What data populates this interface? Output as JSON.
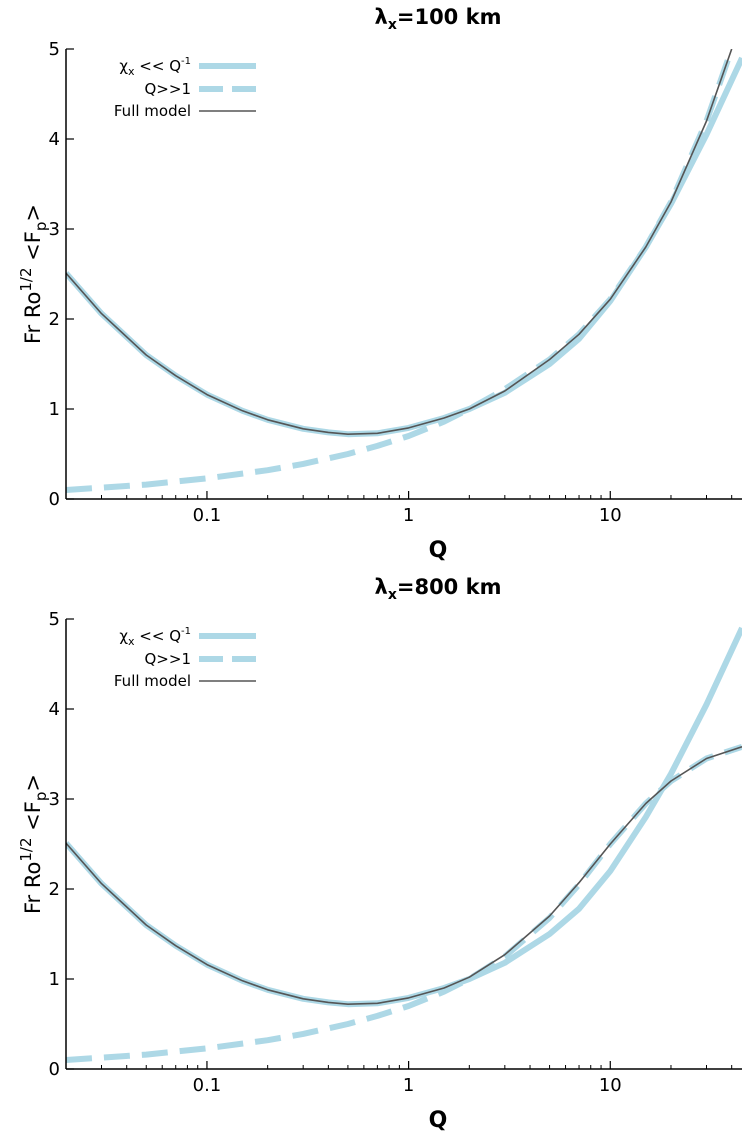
{
  "figure": {
    "colors": {
      "approx": "#add8e6",
      "full": "#555555",
      "axis": "#000000"
    }
  },
  "chart_data": [
    {
      "type": "line",
      "title_main": "λ",
      "title_sub": "x",
      "title_rest": "=100 km",
      "xlabel": "Q",
      "ylabel_a": "Fr Ro",
      "ylabel_sup": "1/2",
      "ylabel_b": " <F",
      "ylabel_sub": "p",
      "ylabel_c": ">",
      "xscale": "log",
      "xlim": [
        0.02,
        45
      ],
      "ylim": [
        0,
        5
      ],
      "xticks": [
        0.1,
        1,
        10
      ],
      "xtick_labels": [
        "0.1",
        "1",
        "10"
      ],
      "yticks": [
        0,
        1,
        2,
        3,
        4,
        5
      ],
      "ytick_labels": [
        "0",
        "1",
        "2",
        "3",
        "4",
        "5"
      ],
      "grid": false,
      "legend_position": "top-left",
      "series": [
        {
          "legend_main": "χ",
          "legend_sub": "x",
          "legend_mid": " << Q",
          "legend_sup": "-1",
          "style": "solid",
          "x": [
            0.02,
            0.03,
            0.05,
            0.07,
            0.1,
            0.15,
            0.2,
            0.3,
            0.4,
            0.5,
            0.7,
            1,
            1.5,
            2,
            3,
            5,
            7,
            10,
            15,
            20,
            30,
            45
          ],
          "y": [
            2.51,
            2.06,
            1.6,
            1.37,
            1.16,
            0.98,
            0.88,
            0.78,
            0.74,
            0.72,
            0.73,
            0.79,
            0.9,
            1.0,
            1.18,
            1.5,
            1.78,
            2.2,
            2.8,
            3.28,
            4.05,
            4.9
          ]
        },
        {
          "legend_main": "Q>>1",
          "style": "dashed",
          "x": [
            0.02,
            0.05,
            0.1,
            0.2,
            0.3,
            0.5,
            0.7,
            1,
            1.5,
            2,
            3,
            5,
            7,
            10,
            15,
            20,
            30,
            40
          ],
          "y": [
            0.1,
            0.16,
            0.23,
            0.32,
            0.39,
            0.5,
            0.59,
            0.7,
            0.86,
            1.0,
            1.22,
            1.55,
            1.83,
            2.22,
            2.8,
            3.3,
            4.2,
            5.0
          ]
        },
        {
          "legend_main": "Full model",
          "style": "thin",
          "x": [
            0.02,
            0.03,
            0.05,
            0.07,
            0.1,
            0.15,
            0.2,
            0.3,
            0.4,
            0.5,
            0.7,
            1,
            1.5,
            2,
            3,
            5,
            7,
            10,
            15,
            20,
            30,
            40
          ],
          "y": [
            2.51,
            2.06,
            1.6,
            1.37,
            1.16,
            0.98,
            0.88,
            0.78,
            0.74,
            0.72,
            0.73,
            0.79,
            0.9,
            1.0,
            1.2,
            1.55,
            1.83,
            2.22,
            2.8,
            3.3,
            4.2,
            5.0
          ]
        }
      ]
    },
    {
      "type": "line",
      "title_main": "λ",
      "title_sub": "x",
      "title_rest": "=800 km",
      "xlabel": "Q",
      "ylabel_a": "Fr Ro",
      "ylabel_sup": "1/2",
      "ylabel_b": " <F",
      "ylabel_sub": "p",
      "ylabel_c": ">",
      "xscale": "log",
      "xlim": [
        0.02,
        45
      ],
      "ylim": [
        0,
        5
      ],
      "xticks": [
        0.1,
        1,
        10
      ],
      "xtick_labels": [
        "0.1",
        "1",
        "10"
      ],
      "yticks": [
        0,
        1,
        2,
        3,
        4,
        5
      ],
      "ytick_labels": [
        "0",
        "1",
        "2",
        "3",
        "4",
        "5"
      ],
      "grid": false,
      "legend_position": "top-left",
      "series": [
        {
          "legend_main": "χ",
          "legend_sub": "x",
          "legend_mid": " << Q",
          "legend_sup": "-1",
          "style": "solid",
          "x": [
            0.02,
            0.03,
            0.05,
            0.07,
            0.1,
            0.15,
            0.2,
            0.3,
            0.4,
            0.5,
            0.7,
            1,
            1.5,
            2,
            3,
            5,
            7,
            10,
            15,
            20,
            30,
            45
          ],
          "y": [
            2.51,
            2.06,
            1.6,
            1.37,
            1.16,
            0.98,
            0.88,
            0.78,
            0.74,
            0.72,
            0.73,
            0.79,
            0.9,
            1.0,
            1.18,
            1.5,
            1.78,
            2.2,
            2.8,
            3.28,
            4.05,
            4.9
          ]
        },
        {
          "legend_main": "Q>>1",
          "style": "dashed",
          "x": [
            0.02,
            0.05,
            0.1,
            0.2,
            0.3,
            0.5,
            0.7,
            1,
            1.5,
            2,
            3,
            5,
            7,
            10,
            15,
            20,
            30,
            45
          ],
          "y": [
            0.1,
            0.16,
            0.23,
            0.32,
            0.39,
            0.5,
            0.59,
            0.7,
            0.86,
            1.0,
            1.25,
            1.68,
            2.05,
            2.5,
            2.95,
            3.2,
            3.45,
            3.58
          ]
        },
        {
          "legend_main": "Full model",
          "style": "thin",
          "x": [
            0.02,
            0.03,
            0.05,
            0.07,
            0.1,
            0.15,
            0.2,
            0.3,
            0.4,
            0.5,
            0.7,
            1,
            1.5,
            2,
            3,
            5,
            7,
            10,
            15,
            20,
            30,
            45
          ],
          "y": [
            2.51,
            2.06,
            1.6,
            1.37,
            1.16,
            0.98,
            0.88,
            0.78,
            0.74,
            0.72,
            0.73,
            0.79,
            0.9,
            1.02,
            1.27,
            1.7,
            2.07,
            2.5,
            2.95,
            3.2,
            3.45,
            3.58
          ]
        }
      ]
    }
  ]
}
